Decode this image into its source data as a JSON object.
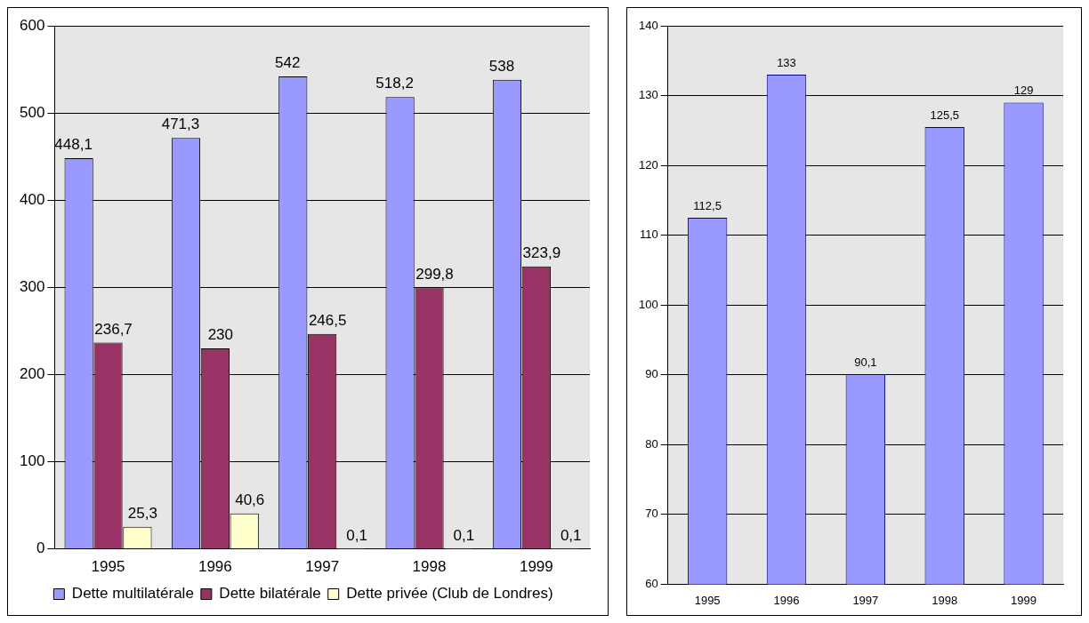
{
  "chart_data": [
    {
      "type": "bar",
      "categories": [
        "1995",
        "1996",
        "1997",
        "1998",
        "1999"
      ],
      "ylim": [
        0,
        600
      ],
      "yticks": [
        0,
        100,
        200,
        300,
        400,
        500,
        600
      ],
      "grid": "y",
      "legend": "bottom",
      "series": [
        {
          "name": "Dette multilatérale",
          "color": "#9999ff",
          "values": [
            448.1,
            471.3,
            542,
            518.2,
            538
          ],
          "value_labels": [
            "448,1",
            "471,3",
            "542",
            "518,2",
            "538"
          ]
        },
        {
          "name": "Dette bilatérale",
          "color": "#993366",
          "values": [
            236.7,
            230,
            246.5,
            299.8,
            323.9
          ],
          "value_labels": [
            "236,7",
            "230",
            "246,5",
            "299,8",
            "323,9"
          ]
        },
        {
          "name": "Dette privée (Club de Londres)",
          "color": "#ffffcc",
          "values": [
            25.3,
            40.6,
            0.1,
            0.1,
            0.1
          ],
          "value_labels": [
            "25,3",
            "40,6",
            "0,1",
            "0,1",
            "0,1"
          ]
        }
      ]
    },
    {
      "type": "bar",
      "categories": [
        "1995",
        "1996",
        "1997",
        "1998",
        "1999"
      ],
      "ylim": [
        60,
        140
      ],
      "yticks": [
        60,
        70,
        80,
        90,
        100,
        110,
        120,
        130,
        140
      ],
      "grid": "y",
      "legend": false,
      "series": [
        {
          "color": "#9999ff",
          "values": [
            112.5,
            133,
            90.1,
            125.5,
            129
          ],
          "value_labels": [
            "112,5",
            "133",
            "90,1",
            "125,5",
            "129"
          ]
        }
      ]
    }
  ]
}
